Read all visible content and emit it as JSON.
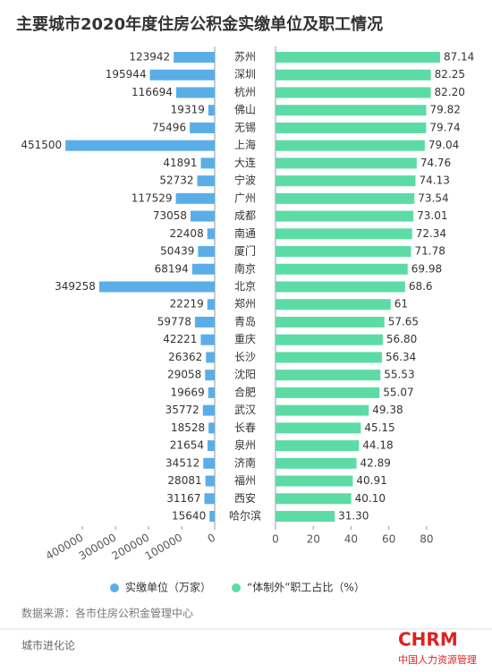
{
  "chart_data": {
    "type": "butterfly-bar",
    "title": "主要城市2020年度住房公积金实缴单位及职工情况",
    "categories": [
      "苏州",
      "深圳",
      "杭州",
      "佛山",
      "无锡",
      "上海",
      "大连",
      "宁波",
      "广州",
      "成都",
      "南通",
      "厦门",
      "南京",
      "北京",
      "郑州",
      "青岛",
      "重庆",
      "长沙",
      "沈阳",
      "合肥",
      "武汉",
      "长春",
      "泉州",
      "济南",
      "福州",
      "西安",
      "哈尔滨"
    ],
    "series": [
      {
        "name": "实缴单位（万家）",
        "color": "#5aaee8",
        "values": [
          123942,
          195944,
          116694,
          19319,
          75496,
          451500,
          41891,
          52732,
          117529,
          73058,
          22408,
          50439,
          68194,
          349258,
          22219,
          59778,
          42221,
          26362,
          29058,
          19669,
          35772,
          18528,
          21654,
          34512,
          28081,
          31167,
          15640
        ],
        "xlim": [
          0,
          460000
        ],
        "xticks": [
          0,
          100000,
          200000,
          300000,
          400000
        ]
      },
      {
        "name": "“体制外”职工占比（%）",
        "color": "#5cdba6",
        "values": [
          87.14,
          82.25,
          82.2,
          79.82,
          79.74,
          79.04,
          74.76,
          74.13,
          73.54,
          73.01,
          72.34,
          71.78,
          69.98,
          68.6,
          61,
          57.65,
          56.8,
          56.34,
          55.53,
          55.07,
          49.38,
          45.15,
          44.18,
          42.89,
          40.91,
          40.1,
          31.3
        ],
        "value_labels": [
          "87.14",
          "82.25",
          "82.20",
          "79.82",
          "79.74",
          "79.04",
          "74.76",
          "74.13",
          "73.54",
          "73.01",
          "72.34",
          "71.78",
          "69.98",
          "68.6",
          "61",
          "57.65",
          "56.80",
          "56.34",
          "55.53",
          "55.07",
          "49.38",
          "45.15",
          "44.18",
          "42.89",
          "40.91",
          "40.10",
          "31.30"
        ],
        "xlim": [
          0,
          90
        ],
        "xticks": [
          0,
          20,
          40,
          60,
          80
        ]
      }
    ],
    "source": "数据来源：各市住房公积金管理中心",
    "footer": "城市进化论",
    "logo": "CHRM",
    "logo_sub": "中国人力资源管理"
  }
}
